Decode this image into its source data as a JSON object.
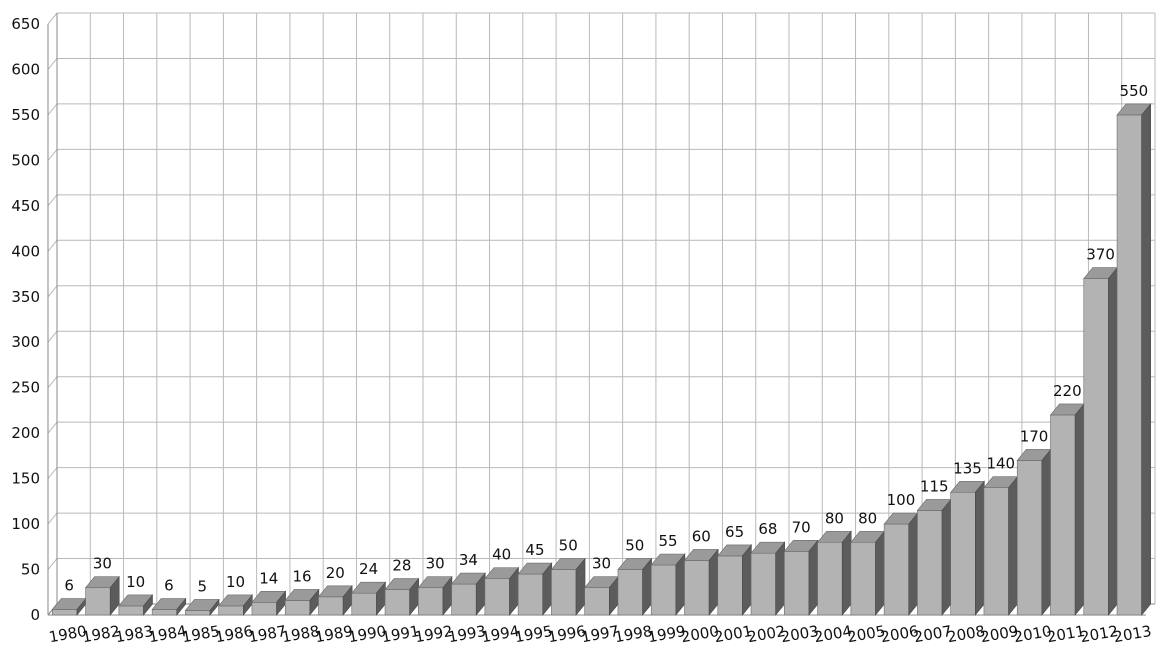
{
  "chart_data": {
    "type": "bar",
    "title": "",
    "xlabel": "",
    "ylabel": "",
    "ylim": [
      0,
      650
    ],
    "yticks": [
      0,
      50,
      100,
      150,
      200,
      250,
      300,
      350,
      400,
      450,
      500,
      550,
      600,
      650
    ],
    "grid": true,
    "legend": "none",
    "style": "3d",
    "categories": [
      "1980",
      "1982",
      "1983",
      "1984",
      "1985",
      "1986",
      "1987",
      "1988",
      "1989",
      "1990",
      "1991",
      "1992",
      "1993",
      "1994",
      "1995",
      "1996",
      "1997",
      "1998",
      "1999",
      "2000",
      "2001",
      "2002",
      "2003",
      "2004",
      "2005",
      "2006",
      "2007",
      "2008",
      "2009",
      "2010",
      "2011",
      "2012",
      "2013"
    ],
    "values": [
      6,
      30,
      10,
      6,
      5,
      10,
      14,
      16,
      20,
      24,
      28,
      30,
      34,
      40,
      45,
      50,
      30,
      50,
      55,
      60,
      65,
      68,
      70,
      80,
      80,
      100,
      115,
      135,
      140,
      170,
      220,
      370,
      550
    ],
    "data_labels": [
      "6",
      "30",
      "10",
      "6",
      "5",
      "10",
      "14",
      "16",
      "20",
      "24",
      "28",
      "30",
      "34",
      "40",
      "45",
      "50",
      "30",
      "50",
      "55",
      "60",
      "65",
      "68",
      "70",
      "80",
      "80",
      "100",
      "115",
      "135",
      "140",
      "170",
      "220",
      "370",
      "550"
    ]
  },
  "colors": {
    "bar_front": "#b3b3b3",
    "bar_top": "#9a9a9a",
    "bar_side": "#5c5c5c",
    "grid": "#b9b9b9"
  }
}
